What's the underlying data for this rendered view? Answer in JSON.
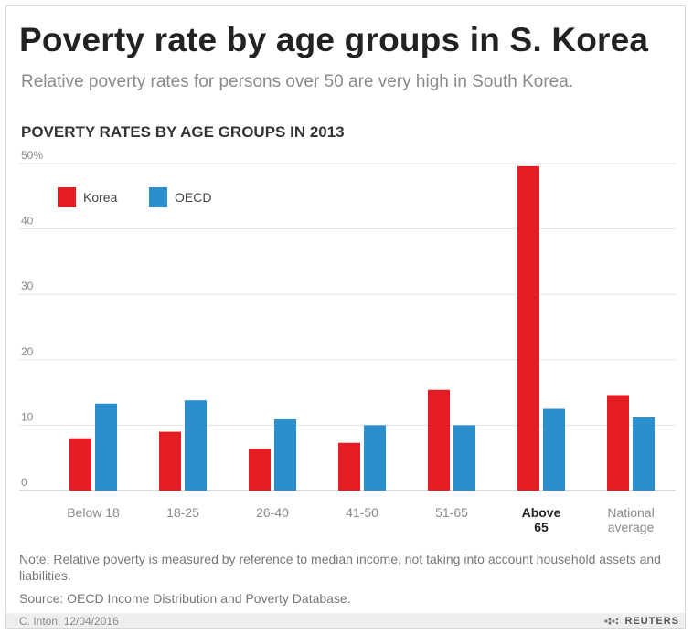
{
  "title": "Poverty rate by age groups in S. Korea",
  "subtitle": "Relative poverty rates for persons over 50 are very high in South Korea.",
  "section_title": "POVERTY RATES BY AGE GROUPS IN 2013",
  "note": "Note: Relative poverty is measured by reference to median income, not taking into account household assets and liabilities.",
  "source": "Source: OECD Income Distribution and Poverty Database.",
  "credit": "C. Inton, 12/04/2016",
  "brand": "REUTERS",
  "colors": {
    "korea": "#e31d23",
    "oecd": "#2b8fce"
  },
  "chart_data": {
    "type": "bar",
    "categories": [
      "Below 18",
      "18-25",
      "26-40",
      "41-50",
      "51-65",
      "Above 65",
      "National average"
    ],
    "category_label_lines": [
      [
        "Below 18"
      ],
      [
        "18-25"
      ],
      [
        "26-40"
      ],
      [
        "41-50"
      ],
      [
        "51-65"
      ],
      [
        "Above",
        "65"
      ],
      [
        "National",
        "average"
      ]
    ],
    "highlighted_category": "Above 65",
    "series": [
      {
        "name": "Korea",
        "values": [
          8.0,
          9.0,
          6.4,
          7.3,
          15.4,
          49.6,
          14.6
        ]
      },
      {
        "name": "OECD",
        "values": [
          13.3,
          13.8,
          10.9,
          10.0,
          10.0,
          12.5,
          11.2
        ]
      }
    ],
    "y_ticks": [
      "0",
      "10",
      "20",
      "30",
      "40",
      "50%"
    ],
    "ylim": [
      0,
      50
    ],
    "legend": "top-left",
    "grid": true
  }
}
